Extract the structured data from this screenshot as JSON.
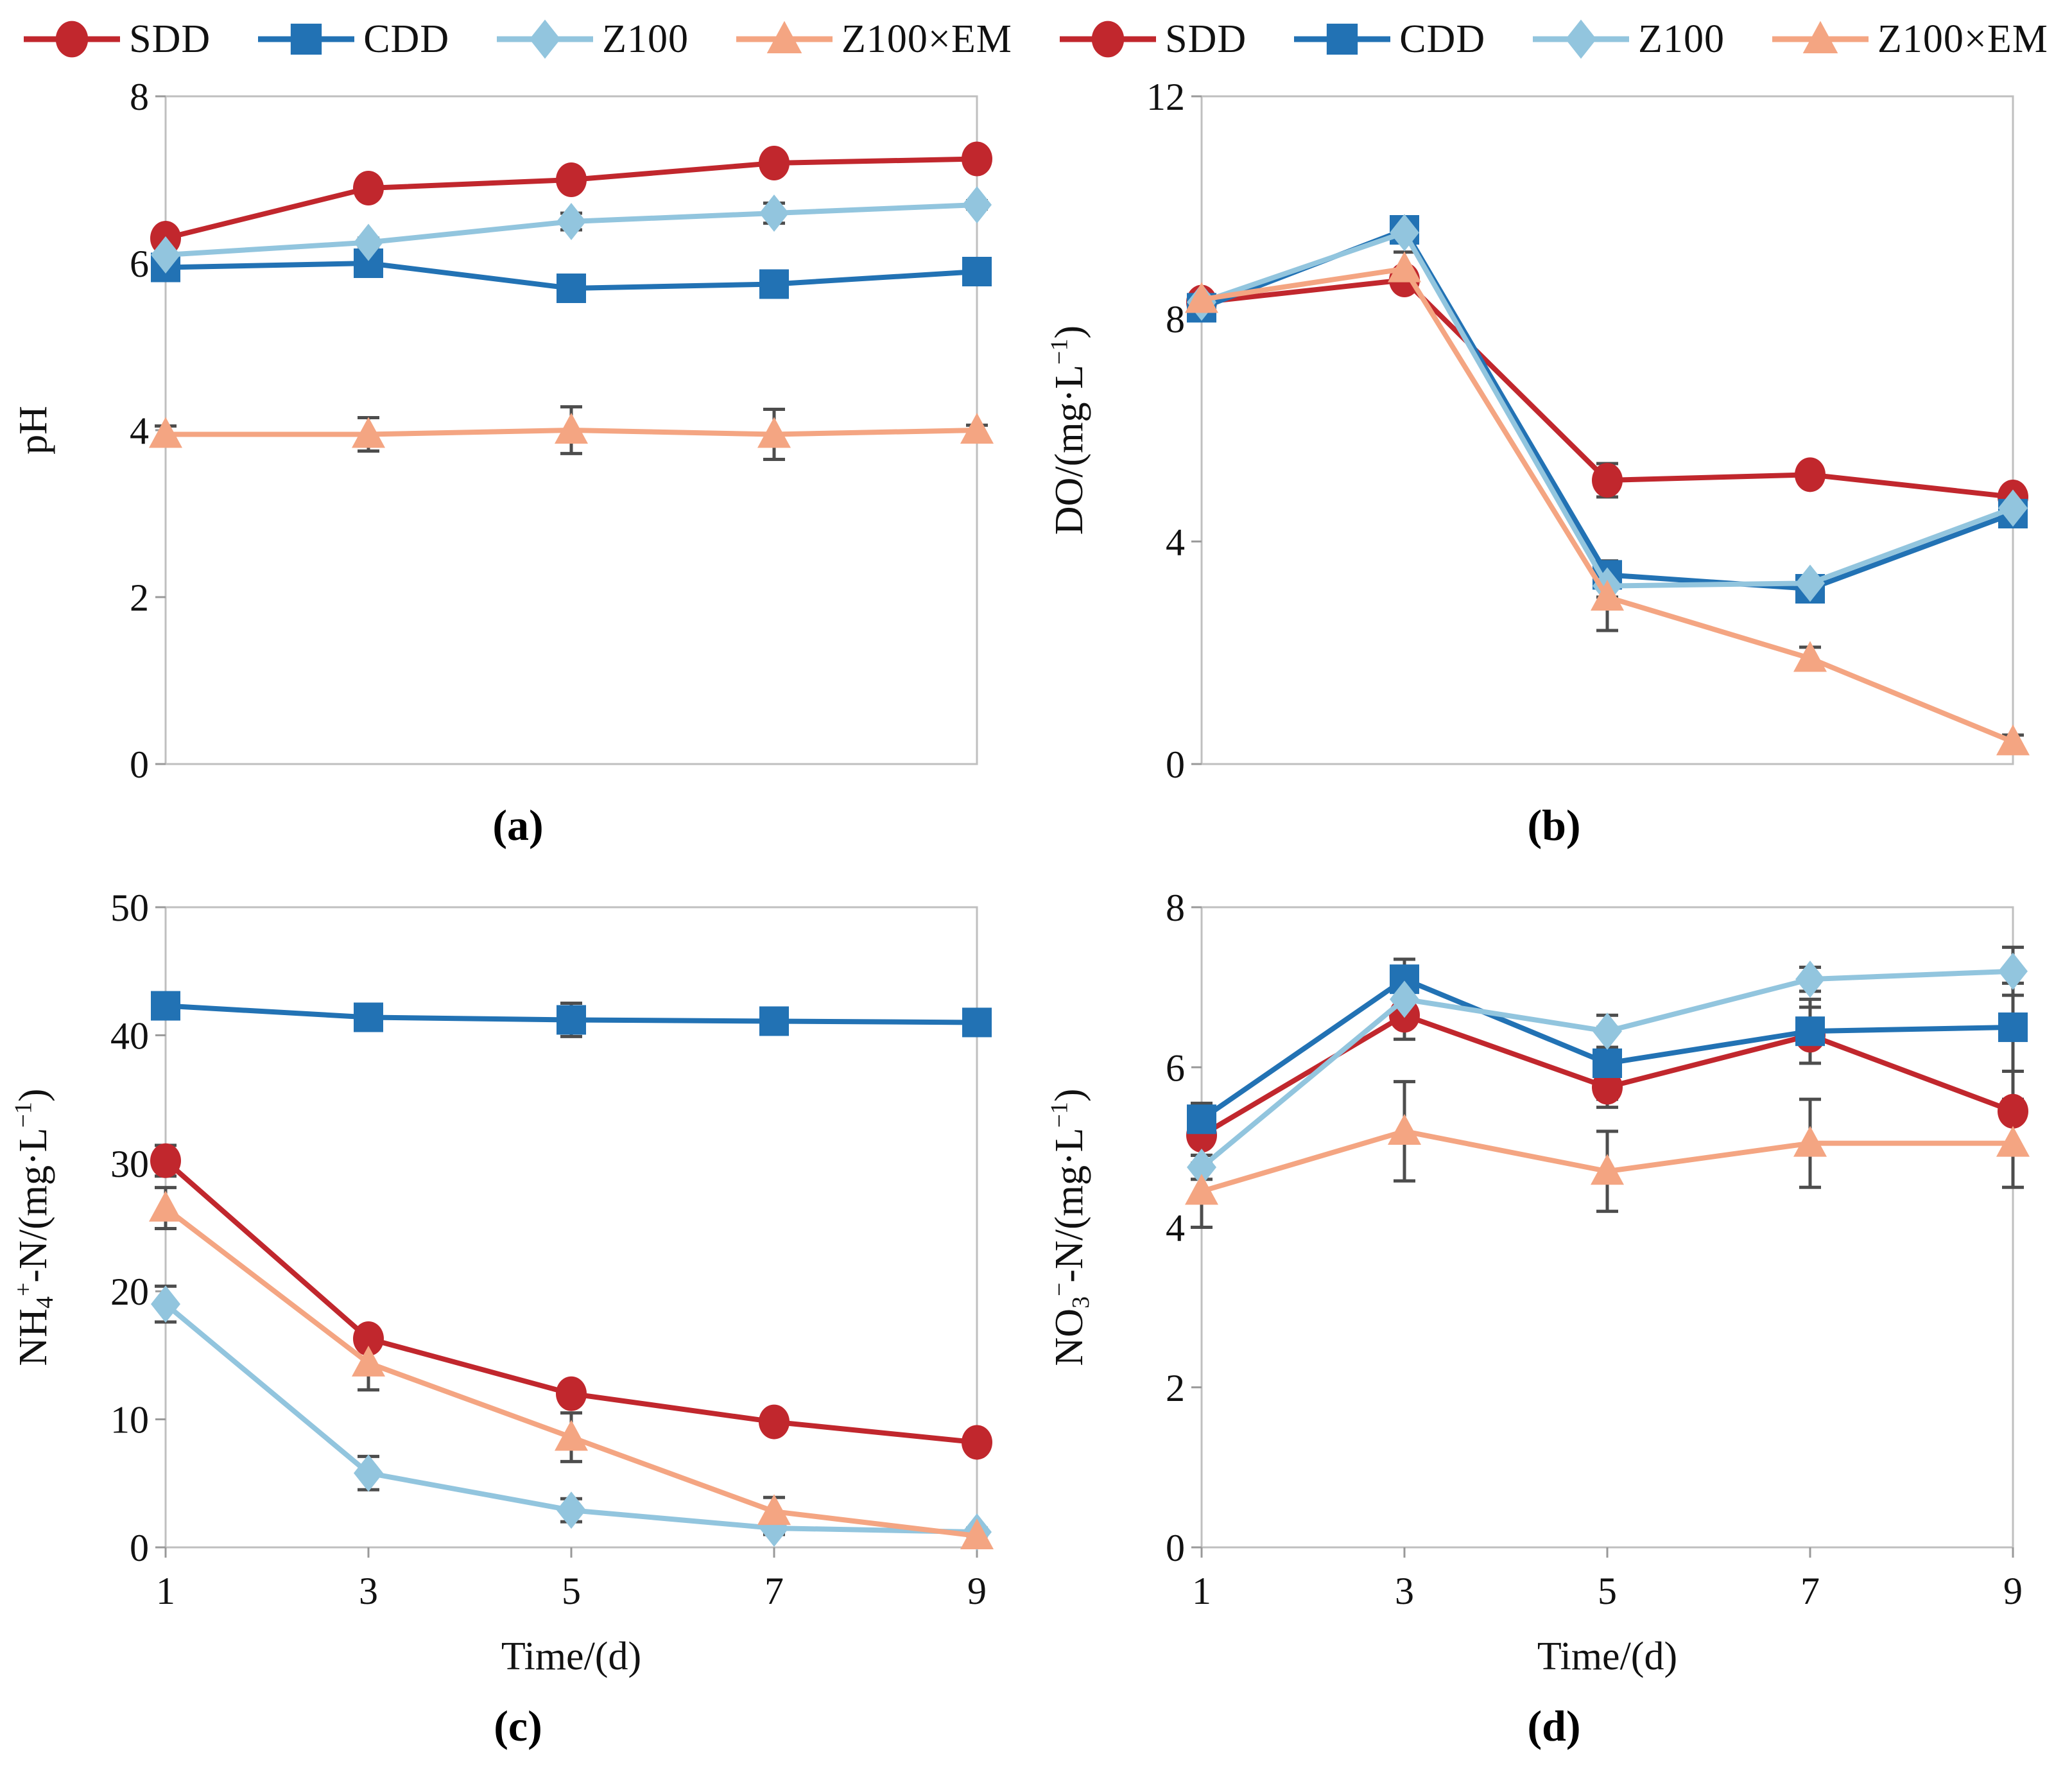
{
  "figure": {
    "type": "four-panel-line-figure",
    "background": "#ffffff",
    "axis_box_color": "#bfbfbf",
    "tick_color": "#999999",
    "error_bar_color": "#4d4d4d"
  },
  "legend": {
    "position": "top",
    "items": [
      "SDD",
      "CDD",
      "Z100",
      "Z100×EM"
    ]
  },
  "series_meta": [
    {
      "name": "SDD",
      "color": "#C1272D",
      "marker": "circle"
    },
    {
      "name": "CDD",
      "color": "#2272B4",
      "marker": "square"
    },
    {
      "name": "Z100",
      "color": "#92C5DE",
      "marker": "diamond"
    },
    {
      "name": "Z100×EM",
      "color": "#F4A582",
      "marker": "triangle"
    }
  ],
  "chart_data": [
    {
      "id": "a",
      "type": "line",
      "caption": "(a)",
      "title": "",
      "ylabel": "pH",
      "ylabel_parts": [
        {
          "t": "pH"
        }
      ],
      "xlabel": "",
      "x": [
        1,
        3,
        5,
        7,
        9
      ],
      "xlim": [
        1,
        9
      ],
      "ylim": [
        0,
        8
      ],
      "yticks": [
        0,
        2,
        4,
        6,
        8
      ],
      "show_x_ticklabels": false,
      "grid": false,
      "series": [
        {
          "name": "SDD",
          "values": [
            6.3,
            6.9,
            7.0,
            7.2,
            7.25
          ],
          "err": [
            0.05,
            0.1,
            0.08,
            0.06,
            0.05
          ]
        },
        {
          "name": "CDD",
          "values": [
            5.95,
            6.0,
            5.7,
            5.75,
            5.9
          ],
          "err": [
            0.05,
            0.05,
            0.05,
            0.05,
            0.05
          ]
        },
        {
          "name": "Z100",
          "values": [
            6.1,
            6.25,
            6.5,
            6.6,
            6.7
          ],
          "err": [
            0.05,
            0.05,
            0.1,
            0.12,
            0.05
          ]
        },
        {
          "name": "Z100×EM",
          "values": [
            3.95,
            3.95,
            4.0,
            3.95,
            4.0
          ],
          "err": [
            0.1,
            0.2,
            0.28,
            0.3,
            0.06
          ]
        }
      ]
    },
    {
      "id": "b",
      "type": "line",
      "caption": "(b)",
      "title": "",
      "ylabel": "DO/(mg·L−1)",
      "ylabel_parts": [
        {
          "t": "DO/(mg·L"
        },
        {
          "t": "−1",
          "sup": true
        },
        {
          "t": ")"
        }
      ],
      "xlabel": "",
      "x": [
        1,
        3,
        5,
        7,
        9
      ],
      "xlim": [
        1,
        9
      ],
      "ylim": [
        0,
        12
      ],
      "yticks": [
        0,
        4,
        8,
        12
      ],
      "show_x_ticklabels": false,
      "grid": false,
      "series": [
        {
          "name": "SDD",
          "values": [
            8.3,
            8.7,
            5.1,
            5.2,
            4.8
          ],
          "err": [
            0.12,
            0.1,
            0.3,
            0.1,
            0.1
          ]
        },
        {
          "name": "CDD",
          "values": [
            8.2,
            9.6,
            3.4,
            3.15,
            4.5
          ],
          "err": [
            0.15,
            0.12,
            0.25,
            0.1,
            0.12
          ]
        },
        {
          "name": "Z100",
          "values": [
            8.3,
            9.55,
            3.2,
            3.25,
            4.6
          ],
          "err": [
            0.1,
            0.12,
            0.2,
            0.1,
            0.1
          ]
        },
        {
          "name": "Z100×EM",
          "values": [
            8.35,
            8.9,
            3.0,
            1.9,
            0.4
          ],
          "err": [
            0.1,
            0.3,
            0.6,
            0.2,
            0.12
          ]
        }
      ]
    },
    {
      "id": "c",
      "type": "line",
      "caption": "(c)",
      "title": "",
      "ylabel": "NH4+-N/(mg·L−1)",
      "ylabel_parts": [
        {
          "t": "NH"
        },
        {
          "t": "4",
          "sub": true
        },
        {
          "t": "+",
          "sup": true
        },
        {
          "t": "-N/(mg·L"
        },
        {
          "t": "−1",
          "sup": true
        },
        {
          "t": ")"
        }
      ],
      "xlabel": "Time/(d)",
      "xlabel_parts": [
        {
          "t": "Time/(d)"
        }
      ],
      "x": [
        1,
        3,
        5,
        7,
        9
      ],
      "xlim": [
        1,
        9
      ],
      "ylim": [
        0,
        50
      ],
      "yticks": [
        0,
        10,
        20,
        30,
        40,
        50
      ],
      "xticklabels": [
        "1",
        "3",
        "5",
        "7",
        "9"
      ],
      "show_x_ticklabels": true,
      "grid": false,
      "series": [
        {
          "name": "SDD",
          "values": [
            30.2,
            16.3,
            12.0,
            9.8,
            8.2
          ],
          "err": [
            1.2,
            0.6,
            0.7,
            0.3,
            0.3
          ]
        },
        {
          "name": "CDD",
          "values": [
            42.3,
            41.4,
            41.2,
            41.1,
            41.0
          ],
          "err": [
            0.4,
            0.5,
            1.3,
            0.4,
            0.5
          ]
        },
        {
          "name": "Z100",
          "values": [
            19.0,
            5.8,
            2.9,
            1.5,
            1.2
          ],
          "err": [
            1.4,
            1.3,
            0.9,
            0.5,
            0.3
          ]
        },
        {
          "name": "Z100×EM",
          "values": [
            26.5,
            14.4,
            8.6,
            2.8,
            0.9
          ],
          "err": [
            1.6,
            2.1,
            1.9,
            1.1,
            0.4
          ]
        }
      ]
    },
    {
      "id": "d",
      "type": "line",
      "caption": "(d)",
      "title": "",
      "ylabel": "NO3−-N/(mg·L−1)",
      "ylabel_parts": [
        {
          "t": "NO"
        },
        {
          "t": "3",
          "sub": true
        },
        {
          "t": "−",
          "sup": true
        },
        {
          "t": "-N/(mg·L"
        },
        {
          "t": "−1",
          "sup": true
        },
        {
          "t": ")"
        }
      ],
      "xlabel": "Time/(d)",
      "xlabel_parts": [
        {
          "t": "Time/(d)"
        }
      ],
      "x": [
        1,
        3,
        5,
        7,
        9
      ],
      "xlim": [
        1,
        9
      ],
      "ylim": [
        0,
        8
      ],
      "yticks": [
        0,
        2,
        4,
        6,
        8
      ],
      "xticklabels": [
        "1",
        "3",
        "5",
        "7",
        "9"
      ],
      "show_x_ticklabels": true,
      "grid": false,
      "series": [
        {
          "name": "SDD",
          "values": [
            5.15,
            6.65,
            5.75,
            6.4,
            5.45
          ],
          "err": [
            0.35,
            0.3,
            0.25,
            0.35,
            0.5
          ]
        },
        {
          "name": "CDD",
          "values": [
            5.35,
            7.1,
            6.05,
            6.45,
            6.5
          ],
          "err": [
            0.2,
            0.25,
            0.45,
            0.4,
            0.55
          ]
        },
        {
          "name": "Z100",
          "values": [
            4.75,
            6.85,
            6.45,
            7.1,
            7.2
          ],
          "err": [
            0.15,
            0.3,
            0.2,
            0.15,
            0.3
          ]
        },
        {
          "name": "Z100×EM",
          "values": [
            4.45,
            5.2,
            4.7,
            5.05,
            5.05
          ],
          "err": [
            0.45,
            0.62,
            0.5,
            0.55,
            0.55
          ]
        }
      ]
    }
  ]
}
